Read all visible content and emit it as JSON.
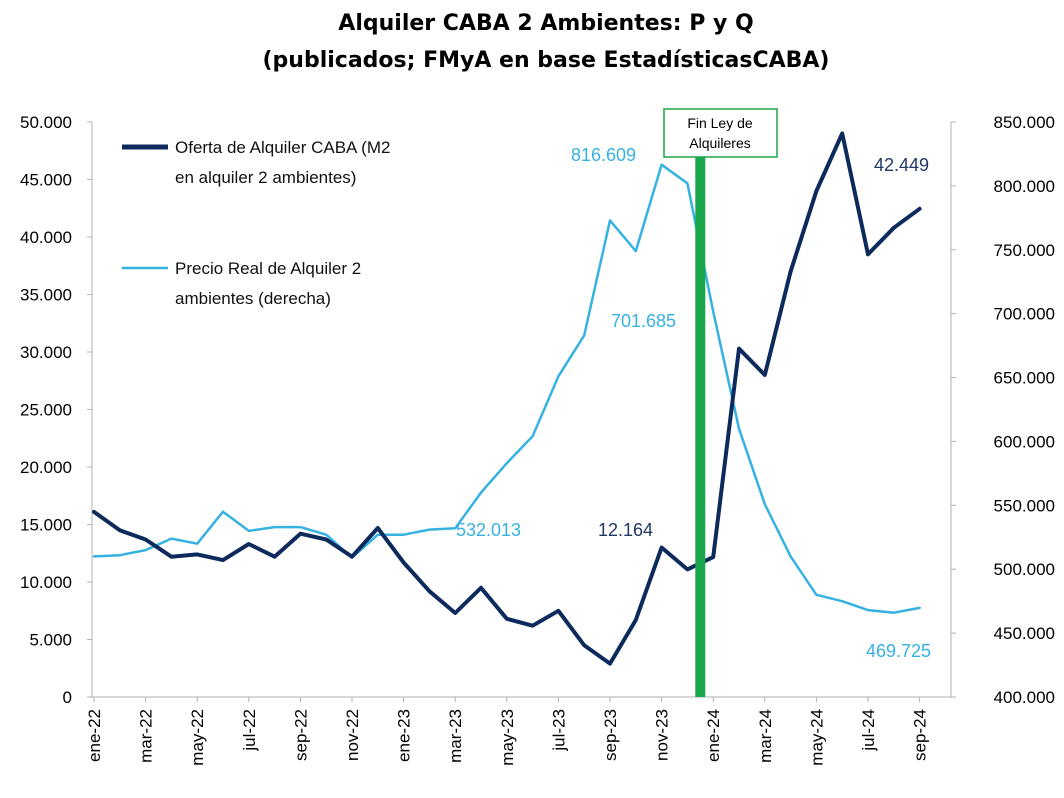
{
  "chart_data": {
    "type": "line",
    "title_line1": "Alquiler CABA 2 Ambientes: P y Q",
    "title_line2": "(publicados; FMyA en base EstadísticasCABA)",
    "x_tick_labels": [
      "ene-22",
      "mar-22",
      "may-22",
      "jul-22",
      "sep-22",
      "nov-22",
      "ene-23",
      "mar-23",
      "may-23",
      "jul-23",
      "sep-23",
      "nov-23",
      "ene-24",
      "mar-24",
      "may-24",
      "jul-24",
      "sep-24"
    ],
    "x_months": [
      "ene-22",
      "feb-22",
      "mar-22",
      "abr-22",
      "may-22",
      "jun-22",
      "jul-22",
      "ago-22",
      "sep-22",
      "oct-22",
      "nov-22",
      "dic-22",
      "ene-23",
      "feb-23",
      "mar-23",
      "abr-23",
      "may-23",
      "jun-23",
      "jul-23",
      "ago-23",
      "sep-23",
      "oct-23",
      "nov-23",
      "dic-23",
      "ene-24",
      "feb-24",
      "mar-24",
      "abr-24",
      "may-24",
      "jun-24",
      "jul-24",
      "ago-24",
      "sep-24"
    ],
    "y_left": {
      "min": 0,
      "max": 50000,
      "ticks": [
        "0",
        "5.000",
        "10.000",
        "15.000",
        "20.000",
        "25.000",
        "30.000",
        "35.000",
        "40.000",
        "45.000",
        "50.000"
      ]
    },
    "y_right": {
      "min": 400000,
      "max": 850000,
      "ticks": [
        "400.000",
        "450.000",
        "500.000",
        "550.000",
        "600.000",
        "650.000",
        "700.000",
        "750.000",
        "800.000",
        "850.000"
      ]
    },
    "series": [
      {
        "name_line1": "Oferta de Alquiler CABA (M2",
        "name_line2": "en alquiler 2 ambientes)",
        "axis": "left",
        "color": "#0d2a5c",
        "values": [
          16100,
          14500,
          13700,
          12200,
          12400,
          11900,
          13300,
          12200,
          14200,
          13700,
          12200,
          14700,
          11700,
          9200,
          7300,
          9500,
          6800,
          6200,
          7500,
          4500,
          2900,
          6700,
          13000,
          11100,
          12164,
          30300,
          28000,
          37000,
          44000,
          49000,
          38500,
          40800,
          42449
        ]
      },
      {
        "name_line1": "Precio Real de Alquiler 2",
        "name_line2": "ambientes (derecha)",
        "axis": "right",
        "color": "#36b2e2",
        "values": [
          510000,
          511000,
          515000,
          524000,
          520000,
          545000,
          530000,
          533000,
          533000,
          527000,
          509000,
          527000,
          527000,
          531000,
          532013,
          560000,
          583000,
          604000,
          651000,
          683000,
          773000,
          749000,
          816609,
          802000,
          701685,
          610000,
          551000,
          510000,
          480000,
          475000,
          468000,
          466000,
          469725
        ]
      }
    ],
    "annotations": [
      {
        "text": "816.609",
        "color": "#36b2e2"
      },
      {
        "text": "701.685",
        "color": "#36b2e2"
      },
      {
        "text": "532.013",
        "color": "#36b2e2"
      },
      {
        "text": "469.725",
        "color": "#36b2e2"
      },
      {
        "text": "42.449",
        "color": "#1f3864"
      },
      {
        "text": "12.164",
        "color": "#1f3864"
      }
    ],
    "event": {
      "label_line1": "Fin Ley de",
      "label_line2": "Alquileres",
      "month": "dic-23",
      "color": "#1aa64a"
    },
    "grid": false
  }
}
